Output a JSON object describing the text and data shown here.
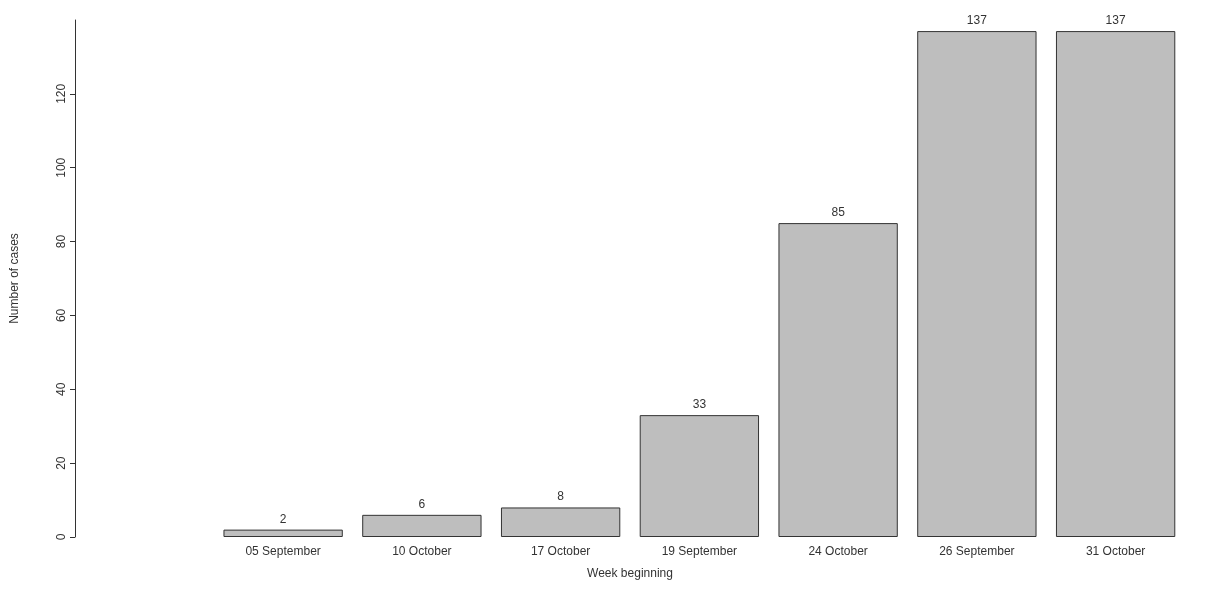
{
  "chart_data": {
    "type": "bar",
    "xlabel": "Week beginning",
    "ylabel": "Number of cases",
    "categories": [
      null,
      "05 September",
      "10 October",
      "17 October",
      "19 September",
      "24 October",
      "26 September",
      "31 October"
    ],
    "values": [
      null,
      2,
      6,
      8,
      33,
      85,
      137,
      137
    ],
    "color": "#bebebe",
    "ylim": [
      0,
      140
    ],
    "yticks": [
      0,
      20,
      40,
      60,
      80,
      100,
      120
    ],
    "grid": false,
    "data_labels": true
  }
}
